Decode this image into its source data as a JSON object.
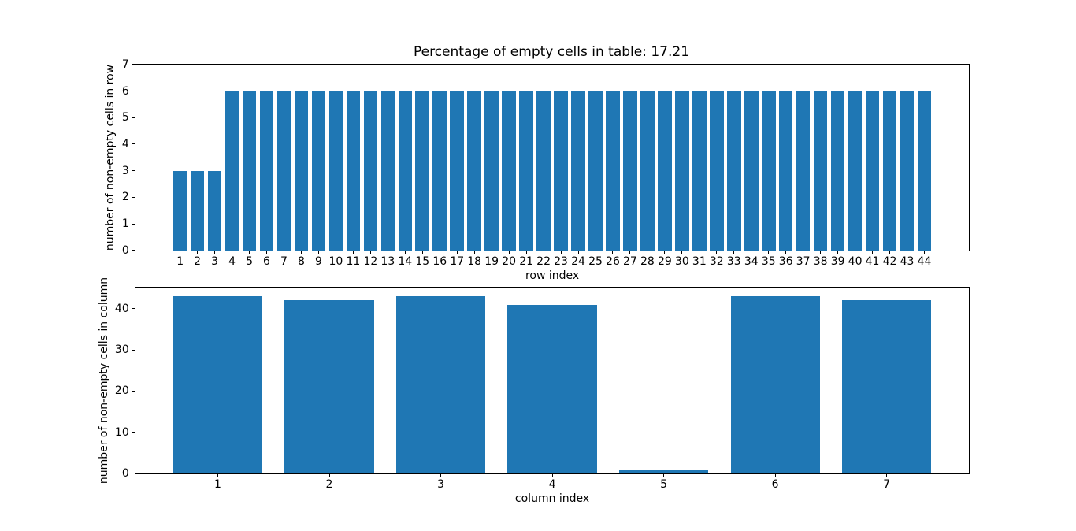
{
  "figure": {
    "background_color": "#ffffff",
    "bar_color": "#1f77b4",
    "axis_color": "#000000",
    "title": "Percentage of empty cells in table: 17.21"
  },
  "chart_data": [
    {
      "type": "bar",
      "title": "Percentage of empty cells in table: 17.21",
      "xlabel": "row index",
      "ylabel": "number of non-empty cells in row",
      "categories": [
        1,
        2,
        3,
        4,
        5,
        6,
        7,
        8,
        9,
        10,
        11,
        12,
        13,
        14,
        15,
        16,
        17,
        18,
        19,
        20,
        21,
        22,
        23,
        24,
        25,
        26,
        27,
        28,
        29,
        30,
        31,
        32,
        33,
        34,
        35,
        36,
        37,
        38,
        39,
        40,
        41,
        42,
        43,
        44
      ],
      "values": [
        3,
        3,
        3,
        6,
        6,
        6,
        6,
        6,
        6,
        6,
        6,
        6,
        6,
        6,
        6,
        6,
        6,
        6,
        6,
        6,
        6,
        6,
        6,
        6,
        6,
        6,
        6,
        6,
        6,
        6,
        6,
        6,
        6,
        6,
        6,
        6,
        6,
        6,
        6,
        6,
        6,
        6,
        6,
        6
      ],
      "xlim": [
        -1.59,
        46.59
      ],
      "ylim": [
        0,
        7
      ],
      "yticks": [
        0,
        1,
        2,
        3,
        4,
        5,
        6,
        7
      ],
      "bar_width": 0.8,
      "grid": false,
      "legend": "none"
    },
    {
      "type": "bar",
      "title": "",
      "xlabel": "column index",
      "ylabel": "number of non-empty cells in column",
      "categories": [
        1,
        2,
        3,
        4,
        5,
        6,
        7
      ],
      "values": [
        43,
        42,
        43,
        41,
        1,
        43,
        42
      ],
      "xlim": [
        0.26,
        7.74
      ],
      "ylim": [
        0,
        45.15
      ],
      "yticks": [
        0,
        10,
        20,
        30,
        40
      ],
      "bar_width": 0.8,
      "grid": false,
      "legend": "none"
    }
  ]
}
